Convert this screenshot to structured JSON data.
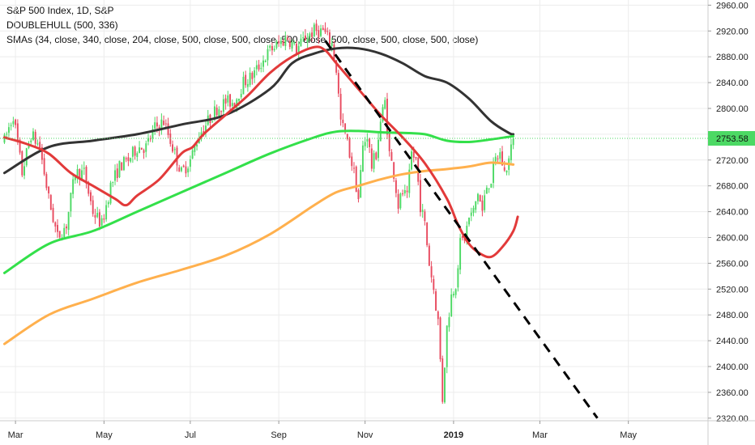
{
  "legend": {
    "symbol": "S&P 500 Index, 1D, S&P",
    "indicator1": "DOUBLEHULL (500, 336)",
    "indicator2": "SMAs (34, close, 340, close, 204, close, 500, close, 500, close, 500, close, 500, close, 500, close, 500, close)"
  },
  "colors": {
    "up": "#4cd964",
    "down": "#e84a5f",
    "hull": "#333333",
    "sma_green": "#33e04a",
    "sma_orange": "#ffb04d",
    "sma_red": "#e23a3a",
    "trendline": "#000000",
    "grid": "#ececec",
    "price_line": "#4cd964"
  },
  "chart_data": {
    "type": "line",
    "title": "S&P 500 Index, 1D, S&P",
    "xlabel": "",
    "ylabel": "",
    "ylim": [
      2316,
      2968
    ],
    "y_ticks": [
      "2960.00",
      "2920.00",
      "2880.00",
      "2840.00",
      "2800.00",
      "2760.00",
      "2720.00",
      "2680.00",
      "2640.00",
      "2600.00",
      "2560.00",
      "2520.00",
      "2480.00",
      "2440.00",
      "2400.00",
      "2360.00",
      "2320.00"
    ],
    "x_ticks": [
      {
        "label": "Mar",
        "i": 5,
        "bold": false
      },
      {
        "label": "May",
        "i": 45,
        "bold": false
      },
      {
        "label": "Jul",
        "i": 84,
        "bold": false
      },
      {
        "label": "Sep",
        "i": 124,
        "bold": false
      },
      {
        "label": "Nov",
        "i": 163,
        "bold": false
      },
      {
        "label": "2019",
        "i": 203,
        "bold": true
      },
      {
        "label": "Mar",
        "i": 242,
        "bold": false
      },
      {
        "label": "May",
        "i": 282,
        "bold": false
      }
    ],
    "last_price": "2753.58",
    "last_value": 2753.58,
    "grid": true,
    "index_range": [
      -2,
      318
    ],
    "candle_anchors": [
      [
        0,
        2750
      ],
      [
        4,
        2790
      ],
      [
        8,
        2700
      ],
      [
        12,
        2760
      ],
      [
        16,
        2740
      ],
      [
        20,
        2660
      ],
      [
        24,
        2600
      ],
      [
        28,
        2620
      ],
      [
        32,
        2700
      ],
      [
        36,
        2700
      ],
      [
        40,
        2640
      ],
      [
        44,
        2620
      ],
      [
        48,
        2680
      ],
      [
        52,
        2710
      ],
      [
        56,
        2720
      ],
      [
        60,
        2740
      ],
      [
        64,
        2740
      ],
      [
        68,
        2770
      ],
      [
        72,
        2780
      ],
      [
        76,
        2740
      ],
      [
        80,
        2700
      ],
      [
        84,
        2720
      ],
      [
        88,
        2760
      ],
      [
        92,
        2780
      ],
      [
        96,
        2800
      ],
      [
        100,
        2810
      ],
      [
        104,
        2810
      ],
      [
        108,
        2840
      ],
      [
        112,
        2850
      ],
      [
        116,
        2870
      ],
      [
        120,
        2890
      ],
      [
        124,
        2900
      ],
      [
        128,
        2910
      ],
      [
        132,
        2890
      ],
      [
        136,
        2910
      ],
      [
        140,
        2920
      ],
      [
        144,
        2920
      ],
      [
        146,
        2910
      ],
      [
        148,
        2900
      ],
      [
        150,
        2860
      ],
      [
        152,
        2780
      ],
      [
        154,
        2760
      ],
      [
        156,
        2730
      ],
      [
        158,
        2700
      ],
      [
        160,
        2660
      ],
      [
        162,
        2740
      ],
      [
        164,
        2760
      ],
      [
        166,
        2710
      ],
      [
        168,
        2730
      ],
      [
        170,
        2780
      ],
      [
        172,
        2810
      ],
      [
        174,
        2730
      ],
      [
        176,
        2700
      ],
      [
        178,
        2650
      ],
      [
        180,
        2670
      ],
      [
        182,
        2660
      ],
      [
        184,
        2730
      ],
      [
        186,
        2720
      ],
      [
        188,
        2650
      ],
      [
        190,
        2620
      ],
      [
        192,
        2560
      ],
      [
        194,
        2520
      ],
      [
        196,
        2470
      ],
      [
        198,
        2350
      ],
      [
        200,
        2460
      ],
      [
        202,
        2510
      ],
      [
        204,
        2530
      ],
      [
        206,
        2590
      ],
      [
        208,
        2600
      ],
      [
        210,
        2630
      ],
      [
        212,
        2640
      ],
      [
        214,
        2670
      ],
      [
        216,
        2640
      ],
      [
        218,
        2680
      ],
      [
        220,
        2690
      ],
      [
        222,
        2720
      ],
      [
        224,
        2730
      ],
      [
        226,
        2700
      ],
      [
        228,
        2720
      ],
      [
        230,
        2753.58
      ]
    ],
    "series": [
      {
        "name": "DOUBLEHULL",
        "color": "#333333",
        "width": 3,
        "points": [
          [
            0,
            2700
          ],
          [
            20,
            2740
          ],
          [
            40,
            2750
          ],
          [
            60,
            2760
          ],
          [
            80,
            2775
          ],
          [
            100,
            2790
          ],
          [
            120,
            2830
          ],
          [
            130,
            2870
          ],
          [
            140,
            2885
          ],
          [
            150,
            2893
          ],
          [
            160,
            2893
          ],
          [
            170,
            2885
          ],
          [
            180,
            2870
          ],
          [
            190,
            2850
          ],
          [
            200,
            2840
          ],
          [
            210,
            2815
          ],
          [
            220,
            2780
          ],
          [
            228,
            2762
          ],
          [
            230,
            2760
          ]
        ]
      },
      {
        "name": "SMA",
        "color": "#33e04a",
        "width": 3,
        "points": [
          [
            0,
            2545
          ],
          [
            20,
            2590
          ],
          [
            40,
            2610
          ],
          [
            60,
            2640
          ],
          [
            80,
            2670
          ],
          [
            100,
            2700
          ],
          [
            120,
            2730
          ],
          [
            140,
            2755
          ],
          [
            150,
            2764
          ],
          [
            160,
            2765
          ],
          [
            170,
            2763
          ],
          [
            180,
            2762
          ],
          [
            190,
            2760
          ],
          [
            200,
            2750
          ],
          [
            210,
            2748
          ],
          [
            220,
            2752
          ],
          [
            230,
            2757
          ]
        ]
      },
      {
        "name": "SMA",
        "color": "#ffb04d",
        "width": 3,
        "points": [
          [
            0,
            2435
          ],
          [
            20,
            2480
          ],
          [
            40,
            2505
          ],
          [
            60,
            2530
          ],
          [
            80,
            2550
          ],
          [
            100,
            2572
          ],
          [
            120,
            2605
          ],
          [
            140,
            2650
          ],
          [
            150,
            2670
          ],
          [
            160,
            2680
          ],
          [
            170,
            2690
          ],
          [
            180,
            2698
          ],
          [
            190,
            2703
          ],
          [
            200,
            2706
          ],
          [
            210,
            2710
          ],
          [
            220,
            2716
          ],
          [
            230,
            2713
          ]
        ]
      },
      {
        "name": "SMA",
        "color": "#e23a3a",
        "width": 3,
        "points": [
          [
            0,
            2755
          ],
          [
            10,
            2745
          ],
          [
            20,
            2730
          ],
          [
            30,
            2700
          ],
          [
            40,
            2680
          ],
          [
            50,
            2660
          ],
          [
            55,
            2650
          ],
          [
            60,
            2665
          ],
          [
            70,
            2690
          ],
          [
            80,
            2730
          ],
          [
            85,
            2740
          ],
          [
            90,
            2760
          ],
          [
            100,
            2790
          ],
          [
            110,
            2820
          ],
          [
            120,
            2855
          ],
          [
            130,
            2880
          ],
          [
            140,
            2895
          ],
          [
            145,
            2890
          ],
          [
            150,
            2870
          ],
          [
            160,
            2830
          ],
          [
            170,
            2790
          ],
          [
            180,
            2755
          ],
          [
            190,
            2715
          ],
          [
            200,
            2660
          ],
          [
            205,
            2620
          ],
          [
            210,
            2590
          ],
          [
            215,
            2575
          ],
          [
            220,
            2570
          ],
          [
            225,
            2585
          ],
          [
            230,
            2610
          ],
          [
            232,
            2632
          ]
        ]
      },
      {
        "name": "Trendline",
        "color": "#000000",
        "width": 3,
        "dash": true,
        "points": [
          [
            145,
            2905
          ],
          [
            268,
            2320
          ]
        ]
      }
    ]
  }
}
